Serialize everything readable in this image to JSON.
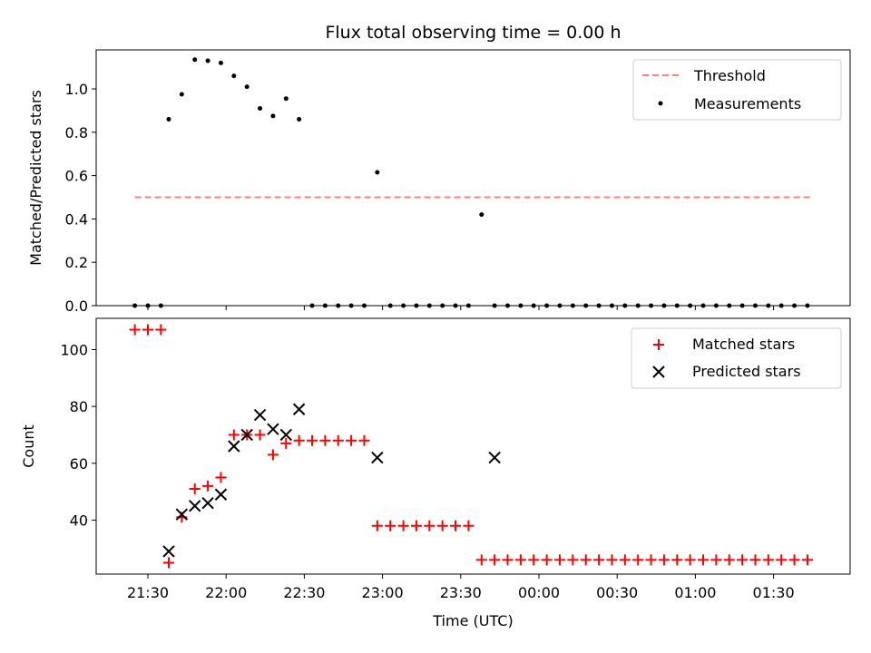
{
  "chart_data": [
    {
      "type": "scatter",
      "title": "Flux total observing time = 0.00 h",
      "ylabel": "Matched/Predicted stars",
      "xlabel": "",
      "ylim": [
        0,
        1.18
      ],
      "yticks": [
        "0.0",
        "0.2",
        "0.4",
        "0.6",
        "0.8",
        "1.0"
      ],
      "grid": false,
      "legend": "top-right",
      "series": [
        {
          "name": "Threshold",
          "kind": "line",
          "style": "dashed",
          "color": "#ff7f7f",
          "x": [
            "21:25",
            "23:55",
            "01:45"
          ],
          "y": [
            0.5,
            0.5,
            0.5
          ]
        },
        {
          "name": "Measurements",
          "kind": "scatter",
          "color": "#000000",
          "x": [
            "21:25",
            "21:30",
            "21:35",
            "21:38",
            "21:43",
            "21:48",
            "21:53",
            "21:58",
            "22:03",
            "22:08",
            "22:13",
            "22:18",
            "22:23",
            "22:28",
            "22:33",
            "22:38",
            "22:43",
            "22:48",
            "22:53",
            "22:58",
            "23:03",
            "23:08",
            "23:13",
            "23:18",
            "23:23",
            "23:28",
            "23:33",
            "23:38",
            "23:43",
            "23:48",
            "23:53",
            "23:58",
            "00:03",
            "00:08",
            "00:13",
            "00:18",
            "00:23",
            "00:28",
            "00:33",
            "00:38",
            "00:43",
            "00:48",
            "00:53",
            "00:58",
            "01:03",
            "01:08",
            "01:13",
            "01:18",
            "01:23",
            "01:28",
            "01:33",
            "01:38",
            "01:43"
          ],
          "y": [
            0,
            0,
            0,
            0.86,
            0.975,
            1.135,
            1.13,
            1.12,
            1.06,
            1.01,
            0.91,
            0.875,
            0.955,
            0.86,
            0,
            0,
            0,
            0,
            0,
            0.615,
            0,
            0,
            0,
            0,
            0,
            0,
            0,
            0.42,
            0,
            0,
            0,
            0,
            0,
            0,
            0,
            0,
            0,
            0,
            0,
            0,
            0,
            0,
            0,
            0,
            0,
            0,
            0,
            0,
            0,
            0,
            0,
            0,
            0
          ]
        }
      ]
    },
    {
      "type": "scatter",
      "title": "",
      "ylabel": "Count",
      "xlabel": "Time (UTC)",
      "ylim": [
        21,
        111
      ],
      "yticks": [
        "40",
        "60",
        "80",
        "100"
      ],
      "xticks": [
        "21:30",
        "22:00",
        "22:30",
        "23:00",
        "23:30",
        "00:00",
        "00:30",
        "01:00",
        "01:30"
      ],
      "grid": false,
      "legend": "top-right",
      "series": [
        {
          "name": "Matched stars",
          "marker": "plus",
          "color": "#ff0000",
          "x": [
            "21:25",
            "21:30",
            "21:35",
            "21:38",
            "21:43",
            "21:48",
            "21:53",
            "21:58",
            "22:03",
            "22:08",
            "22:13",
            "22:18",
            "22:23",
            "22:28",
            "22:33",
            "22:38",
            "22:43",
            "22:48",
            "22:53",
            "22:58",
            "23:03",
            "23:08",
            "23:13",
            "23:18",
            "23:23",
            "23:28",
            "23:33",
            "23:38",
            "23:43",
            "23:48",
            "23:53",
            "23:58",
            "00:03",
            "00:08",
            "00:13",
            "00:18",
            "00:23",
            "00:28",
            "00:33",
            "00:38",
            "00:43",
            "00:48",
            "00:53",
            "00:58",
            "01:03",
            "01:08",
            "01:13",
            "01:18",
            "01:23",
            "01:28",
            "01:33",
            "01:38",
            "01:43"
          ],
          "y": [
            107,
            107,
            107,
            25,
            41,
            51,
            52,
            55,
            70,
            70,
            70,
            63,
            67,
            68,
            68,
            68,
            68,
            68,
            68,
            38,
            38,
            38,
            38,
            38,
            38,
            38,
            38,
            26,
            26,
            26,
            26,
            26,
            26,
            26,
            26,
            26,
            26,
            26,
            26,
            26,
            26,
            26,
            26,
            26,
            26,
            26,
            26,
            26,
            26,
            26,
            26,
            26,
            26
          ]
        },
        {
          "name": "Predicted stars",
          "marker": "x",
          "color": "#000000",
          "x": [
            "21:38",
            "21:43",
            "21:48",
            "21:53",
            "21:58",
            "22:03",
            "22:08",
            "22:13",
            "22:18",
            "22:23",
            "22:28",
            "22:58",
            "23:43"
          ],
          "y": [
            29,
            42,
            45,
            46,
            49,
            66,
            70,
            77,
            72,
            70,
            79,
            62,
            62
          ]
        }
      ]
    }
  ]
}
